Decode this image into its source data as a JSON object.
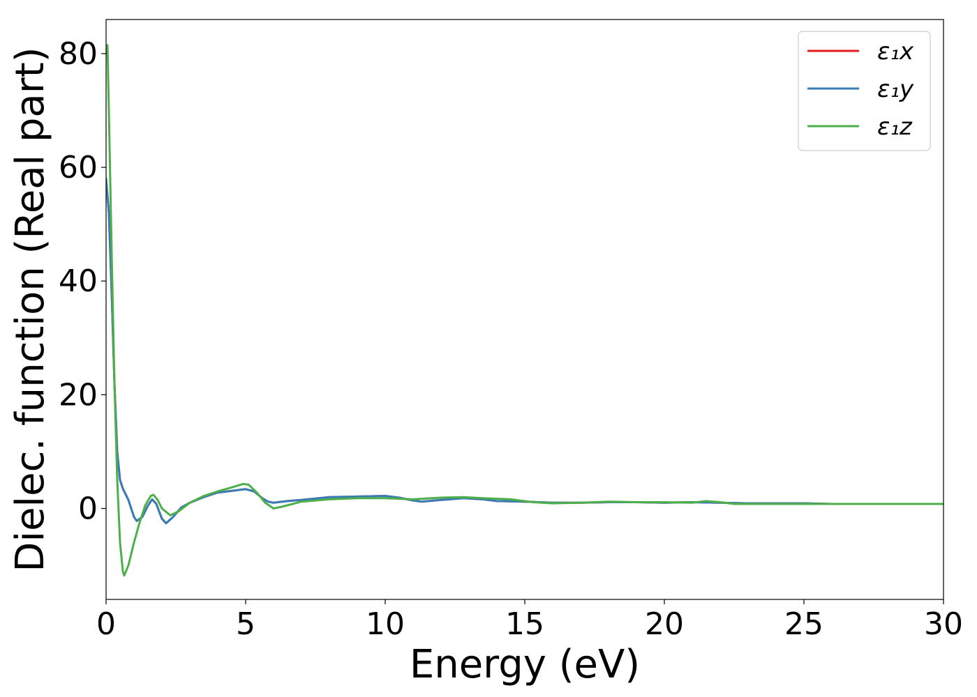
{
  "chart_data": {
    "type": "line",
    "xlabel": "Energy (eV)",
    "ylabel": "Dielec. function (Real part)",
    "xlim": [
      0,
      30
    ],
    "ylim": [
      -16,
      86
    ],
    "xticks": [
      0,
      5,
      10,
      15,
      20,
      25,
      30
    ],
    "yticks": [
      0,
      20,
      40,
      60,
      80
    ],
    "grid": false,
    "legend_position": "top-right",
    "series": [
      {
        "name": "ε₁x",
        "color": "#e41a1c",
        "x": [
          0,
          0.1,
          0.2,
          0.3,
          0.4,
          0.5,
          0.6,
          0.8,
          1.0,
          1.1,
          1.3,
          1.5,
          1.65,
          1.8,
          2.0,
          2.15,
          2.4,
          2.7,
          3.0,
          3.5,
          4.0,
          4.5,
          5.0,
          5.3,
          5.6,
          5.8,
          6.0,
          6.5,
          7.0,
          8.0,
          9.0,
          10.0,
          10.5,
          11.0,
          11.3,
          12.0,
          12.8,
          13.5,
          14.0,
          15.0,
          16.0,
          17.0,
          18.0,
          19.0,
          20.0,
          21.0,
          22.0,
          23.0,
          24.0,
          25.0,
          26.0,
          27.0,
          28.0,
          29.0,
          30.0
        ],
        "values": [
          58,
          52,
          38,
          22,
          10,
          5,
          3.5,
          1.5,
          -1.5,
          -2.2,
          -1.5,
          0.5,
          1.6,
          0.8,
          -1.8,
          -2.6,
          -1.5,
          0.2,
          1.0,
          2.0,
          2.8,
          3.1,
          3.4,
          3.0,
          1.8,
          1.2,
          1.0,
          1.3,
          1.5,
          2.0,
          2.1,
          2.2,
          1.9,
          1.4,
          1.2,
          1.5,
          1.8,
          1.6,
          1.3,
          1.2,
          1.0,
          1.0,
          1.1,
          1.1,
          1.0,
          1.1,
          1.0,
          0.9,
          0.9,
          0.9,
          0.8,
          0.8,
          0.8,
          0.8,
          0.8
        ]
      },
      {
        "name": "ε₁y",
        "color": "#377eb8",
        "x": [
          0,
          0.1,
          0.2,
          0.3,
          0.4,
          0.5,
          0.6,
          0.8,
          1.0,
          1.1,
          1.3,
          1.5,
          1.65,
          1.8,
          2.0,
          2.15,
          2.4,
          2.7,
          3.0,
          3.5,
          4.0,
          4.5,
          5.0,
          5.3,
          5.6,
          5.8,
          6.0,
          6.5,
          7.0,
          8.0,
          9.0,
          10.0,
          10.5,
          11.0,
          11.3,
          12.0,
          12.8,
          13.5,
          14.0,
          15.0,
          16.0,
          17.0,
          18.0,
          19.0,
          20.0,
          21.0,
          22.0,
          23.0,
          24.0,
          25.0,
          26.0,
          27.0,
          28.0,
          29.0,
          30.0
        ],
        "values": [
          58,
          52,
          38,
          22,
          10,
          5,
          3.5,
          1.5,
          -1.5,
          -2.2,
          -1.5,
          0.5,
          1.6,
          0.8,
          -1.8,
          -2.6,
          -1.5,
          0.2,
          1.0,
          2.0,
          2.8,
          3.1,
          3.4,
          3.0,
          1.8,
          1.2,
          1.0,
          1.3,
          1.5,
          2.0,
          2.1,
          2.2,
          1.9,
          1.4,
          1.2,
          1.5,
          1.8,
          1.6,
          1.3,
          1.2,
          1.0,
          1.0,
          1.1,
          1.1,
          1.0,
          1.1,
          1.0,
          0.9,
          0.9,
          0.9,
          0.8,
          0.8,
          0.8,
          0.8,
          0.8
        ]
      },
      {
        "name": "ε₁z",
        "color": "#4daf4a",
        "x": [
          0,
          0.05,
          0.1,
          0.2,
          0.3,
          0.4,
          0.5,
          0.6,
          0.65,
          0.8,
          1.0,
          1.2,
          1.4,
          1.6,
          1.7,
          1.85,
          2.0,
          2.3,
          2.6,
          3.0,
          3.5,
          4.0,
          4.5,
          4.9,
          5.1,
          5.4,
          5.7,
          6.0,
          6.3,
          7.0,
          8.0,
          9.0,
          10.0,
          11.0,
          12.0,
          12.8,
          13.5,
          14.5,
          15.3,
          16.0,
          17.0,
          18.0,
          19.0,
          20.0,
          21.0,
          21.5,
          22.0,
          22.5,
          23.0,
          24.0,
          25.0,
          26.0,
          27.0,
          28.0,
          29.0,
          30.0
        ],
        "values": [
          80,
          81.5,
          70,
          45,
          22,
          5,
          -6,
          -11,
          -11.8,
          -10,
          -6,
          -2.5,
          0.5,
          2.2,
          2.4,
          1.5,
          0,
          -1.2,
          -0.5,
          1.0,
          2.2,
          3.0,
          3.7,
          4.3,
          4.2,
          2.8,
          1.0,
          0,
          0.3,
          1.2,
          1.6,
          1.8,
          1.8,
          1.6,
          1.9,
          2.0,
          1.8,
          1.6,
          1.1,
          0.9,
          1.0,
          1.2,
          1.1,
          1.1,
          1.0,
          1.3,
          1.1,
          0.8,
          0.8,
          0.8,
          0.8,
          0.8,
          0.8,
          0.8,
          0.8,
          0.8
        ]
      }
    ]
  }
}
